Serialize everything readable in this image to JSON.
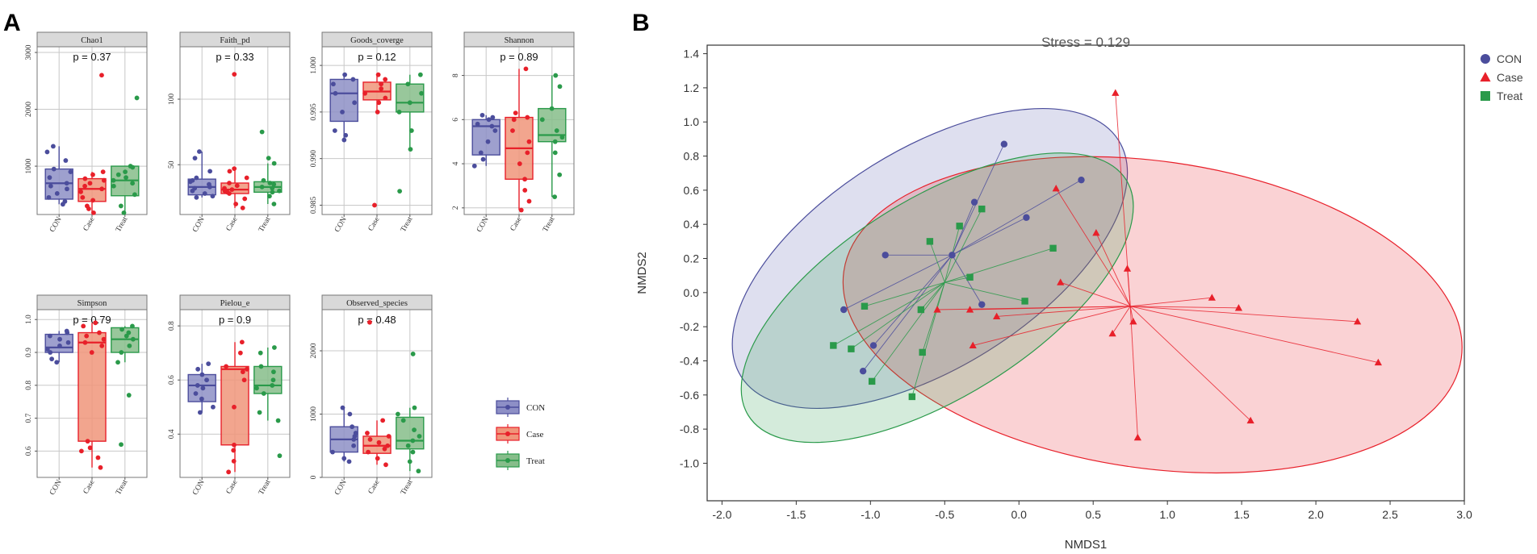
{
  "figure": {
    "label_a": "A",
    "label_b": "B"
  },
  "colors": {
    "CON": "#4b4d9c",
    "Case": "#e8202a",
    "Treat": "#2a9a4a",
    "CON_fill": "#8d8fc6",
    "Case_fill": "#f0957a",
    "Treat_fill": "#86bd8a",
    "strip": "#d9d9d9",
    "grid": "#c8c8c8"
  },
  "chart_data": [
    {
      "type": "box",
      "panel": "A",
      "groups": [
        "CON",
        "Case",
        "Treat"
      ],
      "legend": {
        "entries": [
          "CON",
          "Case",
          "Treat"
        ],
        "position": "right"
      },
      "facets": [
        {
          "title": "Chao1",
          "p": "p = 0.37",
          "ylim": [
            150,
            3100
          ],
          "ticks": [
            1000,
            2000,
            3000
          ],
          "tick_labels": [
            "1000",
            "2000",
            "3000"
          ],
          "boxes": [
            {
              "group": "CON",
              "q1": 420,
              "median": 700,
              "q3": 950,
              "lo": 330,
              "hi": 1350,
              "points": [
                380,
                450,
                520,
                600,
                650,
                700,
                800,
                900,
                950,
                1100,
                1250,
                1350,
                330
              ]
            },
            {
              "group": "Case",
              "q1": 380,
              "median": 600,
              "q3": 780,
              "lo": 180,
              "hi": 900,
              "points": [
                180,
                250,
                300,
                400,
                450,
                550,
                600,
                650,
                700,
                750,
                780,
                850,
                900,
                2600
              ]
            },
            {
              "group": "Treat",
              "q1": 480,
              "median": 750,
              "q3": 1000,
              "lo": 180,
              "hi": 1000,
              "points": [
                180,
                300,
                500,
                650,
                700,
                750,
                800,
                850,
                900,
                980,
                1000,
                2200
              ]
            }
          ]
        },
        {
          "title": "Faith_pd",
          "p": "p = 0.33",
          "ylim": [
            12,
            140
          ],
          "ticks": [
            50,
            100
          ],
          "tick_labels": [
            "50",
            "100"
          ],
          "boxes": [
            {
              "group": "CON",
              "q1": 27,
              "median": 33,
              "q3": 39,
              "lo": 25,
              "hi": 60,
              "points": [
                25,
                26,
                28,
                30,
                32,
                33,
                35,
                37,
                38,
                40,
                45,
                55,
                60
              ]
            },
            {
              "group": "Case",
              "q1": 28,
              "median": 31,
              "q3": 36,
              "lo": 17,
              "hi": 47,
              "points": [
                17,
                20,
                24,
                28,
                29,
                30,
                31,
                32,
                34,
                36,
                40,
                45,
                47,
                119
              ]
            },
            {
              "group": "Treat",
              "q1": 29,
              "median": 33,
              "q3": 37,
              "lo": 20,
              "hi": 51,
              "points": [
                20,
                26,
                29,
                30,
                32,
                33,
                35,
                36,
                38,
                51,
                55,
                75
              ]
            }
          ]
        },
        {
          "title": "Goods_coverge",
          "p": "p = 0.12",
          "ylim": [
            0.984,
            1.002
          ],
          "ticks": [
            0.985,
            0.99,
            0.995,
            1.0
          ],
          "tick_labels": [
            "0.985",
            "0.990",
            "0.995",
            "1.000"
          ],
          "boxes": [
            {
              "group": "CON",
              "q1": 0.994,
              "median": 0.997,
              "q3": 0.9985,
              "lo": 0.992,
              "hi": 0.999,
              "points": [
                0.992,
                0.9925,
                0.993,
                0.995,
                0.996,
                0.997,
                0.998,
                0.9985,
                0.999
              ]
            },
            {
              "group": "Case",
              "q1": 0.9963,
              "median": 0.9972,
              "q3": 0.9982,
              "lo": 0.995,
              "hi": 0.999,
              "points": [
                0.995,
                0.996,
                0.9965,
                0.997,
                0.9975,
                0.998,
                0.9985,
                0.999,
                0.985
              ]
            },
            {
              "group": "Treat",
              "q1": 0.995,
              "median": 0.996,
              "q3": 0.998,
              "lo": 0.991,
              "hi": 0.999,
              "points": [
                0.991,
                0.993,
                0.995,
                0.996,
                0.997,
                0.998,
                0.999,
                0.9865
              ]
            }
          ]
        },
        {
          "title": "Shannon",
          "p": "p = 0.89",
          "ylim": [
            1.7,
            9.3
          ],
          "ticks": [
            2,
            4,
            6,
            8
          ],
          "tick_labels": [
            "2",
            "4",
            "6",
            "8"
          ],
          "boxes": [
            {
              "group": "CON",
              "q1": 4.4,
              "median": 5.7,
              "q3": 6.0,
              "lo": 3.9,
              "hi": 6.2,
              "points": [
                3.9,
                4.2,
                4.5,
                5.0,
                5.5,
                5.7,
                5.8,
                6.0,
                6.1,
                6.2
              ]
            },
            {
              "group": "Case",
              "q1": 3.3,
              "median": 4.7,
              "q3": 6.1,
              "lo": 1.9,
              "hi": 8.3,
              "points": [
                1.9,
                2.3,
                2.8,
                3.3,
                4.0,
                4.5,
                5.0,
                5.5,
                6.0,
                6.1,
                6.3,
                8.3
              ]
            },
            {
              "group": "Treat",
              "q1": 5.0,
              "median": 5.3,
              "q3": 6.5,
              "lo": 2.5,
              "hi": 8.0,
              "points": [
                2.5,
                3.5,
                4.5,
                5.0,
                5.2,
                5.5,
                6.0,
                6.5,
                7.5,
                8.0
              ]
            }
          ]
        },
        {
          "title": "Simpson",
          "p": "p = 0.79",
          "ylim": [
            0.52,
            1.03
          ],
          "ticks": [
            0.6,
            0.7,
            0.8,
            0.9,
            1.0
          ],
          "tick_labels": [
            "0.6",
            "0.7",
            "0.8",
            "0.9",
            "1.0"
          ],
          "boxes": [
            {
              "group": "CON",
              "q1": 0.9,
              "median": 0.915,
              "q3": 0.955,
              "lo": 0.87,
              "hi": 0.965,
              "points": [
                0.87,
                0.88,
                0.9,
                0.91,
                0.92,
                0.93,
                0.94,
                0.95,
                0.96,
                0.965
              ]
            },
            {
              "group": "Case",
              "q1": 0.63,
              "median": 0.93,
              "q3": 0.96,
              "lo": 0.55,
              "hi": 0.99,
              "points": [
                0.55,
                0.58,
                0.6,
                0.61,
                0.63,
                0.9,
                0.92,
                0.93,
                0.94,
                0.95,
                0.96,
                0.98,
                0.99
              ]
            },
            {
              "group": "Treat",
              "q1": 0.9,
              "median": 0.94,
              "q3": 0.975,
              "lo": 0.87,
              "hi": 0.98,
              "points": [
                0.62,
                0.77,
                0.87,
                0.9,
                0.92,
                0.94,
                0.95,
                0.96,
                0.97,
                0.98
              ]
            }
          ]
        },
        {
          "title": "Pielou_e",
          "p": "p = 0.9",
          "ylim": [
            0.24,
            0.86
          ],
          "ticks": [
            0.4,
            0.6,
            0.8
          ],
          "tick_labels": [
            "0.4",
            "0.6",
            "0.8"
          ],
          "boxes": [
            {
              "group": "CON",
              "q1": 0.52,
              "median": 0.58,
              "q3": 0.62,
              "lo": 0.48,
              "hi": 0.66,
              "points": [
                0.48,
                0.5,
                0.53,
                0.55,
                0.57,
                0.58,
                0.6,
                0.62,
                0.64,
                0.66
              ]
            },
            {
              "group": "Case",
              "q1": 0.36,
              "median": 0.64,
              "q3": 0.65,
              "lo": 0.26,
              "hi": 0.74,
              "points": [
                0.26,
                0.3,
                0.34,
                0.36,
                0.5,
                0.6,
                0.63,
                0.64,
                0.65,
                0.7,
                0.74
              ]
            },
            {
              "group": "Treat",
              "q1": 0.55,
              "median": 0.58,
              "q3": 0.65,
              "lo": 0.45,
              "hi": 0.72,
              "points": [
                0.32,
                0.45,
                0.48,
                0.55,
                0.57,
                0.58,
                0.6,
                0.63,
                0.65,
                0.7,
                0.72
              ]
            }
          ]
        },
        {
          "title": "Observed_species",
          "p": "p = 0.48",
          "ylim": [
            0,
            2650
          ],
          "ticks": [
            0,
            1000,
            2000
          ],
          "tick_labels": [
            "0",
            "1000",
            "2000"
          ],
          "boxes": [
            {
              "group": "CON",
              "q1": 400,
              "median": 600,
              "q3": 800,
              "lo": 250,
              "hi": 1100,
              "points": [
                250,
                300,
                400,
                500,
                600,
                650,
                700,
                800,
                1000,
                1100
              ]
            },
            {
              "group": "Case",
              "q1": 380,
              "median": 500,
              "q3": 650,
              "lo": 200,
              "hi": 900,
              "points": [
                200,
                300,
                400,
                450,
                500,
                550,
                600,
                650,
                700,
                900,
                2450
              ]
            },
            {
              "group": "Treat",
              "q1": 450,
              "median": 580,
              "q3": 950,
              "lo": 100,
              "hi": 1100,
              "points": [
                100,
                250,
                400,
                500,
                580,
                650,
                750,
                900,
                1000,
                1100,
                1950
              ]
            }
          ]
        }
      ]
    },
    {
      "type": "scatter",
      "panel": "B",
      "title": "Stress = 0.129",
      "xlabel": "NMDS1",
      "ylabel": "NMDS2",
      "xlim": [
        -2.1,
        3.0
      ],
      "ylim": [
        -1.22,
        1.45
      ],
      "x_ticks": [
        -2.0,
        -1.5,
        -1.0,
        -0.5,
        0.0,
        0.5,
        1.0,
        1.5,
        2.0,
        2.5,
        3.0
      ],
      "x_tick_labels": [
        "-2.0",
        "-1.5",
        "-1.0",
        "-0.5",
        "0.0",
        "0.5",
        "1.0",
        "1.5",
        "2.0",
        "2.5",
        "3.0"
      ],
      "y_ticks": [
        -1.0,
        -0.8,
        -0.6,
        -0.4,
        -0.2,
        0.0,
        0.2,
        0.4,
        0.6,
        0.8,
        1.0,
        1.2,
        1.4
      ],
      "y_tick_labels": [
        "-1.0",
        "-0.8",
        "-0.6",
        "-0.4",
        "-0.2",
        "0.0",
        "0.2",
        "0.4",
        "0.6",
        "0.8",
        "1.0",
        "1.2",
        "1.4"
      ],
      "legend": {
        "position": "top-right",
        "entries": [
          "CON",
          "Case",
          "Treat"
        ]
      },
      "series": [
        {
          "name": "CON",
          "marker": "circle",
          "centroid": [
            -0.45,
            0.22
          ],
          "ellipse": {
            "cx": -0.6,
            "cy": 0.2,
            "rx": 1.5,
            "ry": 0.64,
            "angle_deg": 32
          },
          "points": [
            [
              -0.1,
              0.87
            ],
            [
              0.42,
              0.66
            ],
            [
              -0.3,
              0.53
            ],
            [
              0.05,
              0.44
            ],
            [
              -0.9,
              0.22
            ],
            [
              -0.45,
              0.22
            ],
            [
              -0.25,
              -0.07
            ],
            [
              -1.18,
              -0.1
            ],
            [
              -0.98,
              -0.31
            ],
            [
              -1.05,
              -0.46
            ]
          ]
        },
        {
          "name": "Case",
          "marker": "triangle",
          "centroid": [
            0.75,
            -0.08
          ],
          "ellipse": {
            "cx": 0.9,
            "cy": -0.13,
            "rx": 2.1,
            "ry": 0.9,
            "angle_deg": -8
          },
          "points": [
            [
              0.65,
              1.17
            ],
            [
              0.25,
              0.61
            ],
            [
              0.52,
              0.35
            ],
            [
              0.73,
              0.14
            ],
            [
              0.28,
              0.06
            ],
            [
              1.3,
              -0.03
            ],
            [
              1.48,
              -0.09
            ],
            [
              -0.55,
              -0.1
            ],
            [
              -0.33,
              -0.1
            ],
            [
              -0.15,
              -0.14
            ],
            [
              2.28,
              -0.17
            ],
            [
              0.77,
              -0.17
            ],
            [
              0.63,
              -0.24
            ],
            [
              -0.31,
              -0.31
            ],
            [
              2.42,
              -0.41
            ],
            [
              1.56,
              -0.75
            ],
            [
              0.8,
              -0.85
            ]
          ]
        },
        {
          "name": "Treat",
          "marker": "square",
          "centroid": [
            -0.5,
            0.06
          ],
          "ellipse": {
            "cx": -0.55,
            "cy": -0.03,
            "rx": 1.5,
            "ry": 0.58,
            "angle_deg": 32
          },
          "points": [
            [
              -0.25,
              0.49
            ],
            [
              -0.4,
              0.39
            ],
            [
              -0.6,
              0.3
            ],
            [
              0.23,
              0.26
            ],
            [
              -0.33,
              0.09
            ],
            [
              0.04,
              -0.05
            ],
            [
              -1.04,
              -0.08
            ],
            [
              -0.66,
              -0.1
            ],
            [
              -1.25,
              -0.31
            ],
            [
              -1.13,
              -0.33
            ],
            [
              -0.65,
              -0.35
            ],
            [
              -0.99,
              -0.52
            ],
            [
              -0.72,
              -0.61
            ]
          ]
        }
      ]
    }
  ]
}
